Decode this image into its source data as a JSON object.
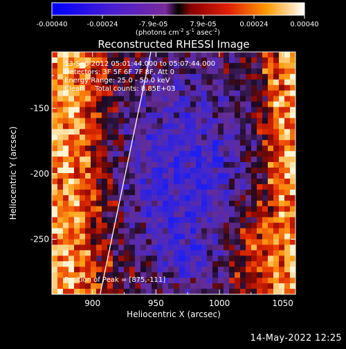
{
  "chart_data": {
    "type": "heatmap",
    "title": "Reconstructed RHESSI Image",
    "xlabel": "Heliocentric X (arcsec)",
    "ylabel": "Heliocentric Y (arcsec)",
    "xlim": [
      868,
      1060
    ],
    "ylim": [
      -292,
      -107
    ],
    "xticks": [
      900,
      950,
      1000,
      1050
    ],
    "yticks": [
      -150,
      -200,
      -250
    ],
    "colorbar": {
      "range": [
        -0.0004,
        0.0004
      ],
      "ticks": [
        "-0.00040",
        "-0.00024",
        "-7.9e-05",
        "7.9e-05",
        "0.00024",
        "0.00040"
      ],
      "units_text": "(photons cm",
      "units_sup1": "-2",
      "units_mid1": " s",
      "units_sup2": "-1",
      "units_mid2": " asec",
      "units_sup3": "-2",
      "units_end": ")"
    },
    "annotations": [
      "13-Sep-2012 05:01:44.000 to 05:07:44.000",
      "Detectors: 3F 5F 6F 7F 8F, Att 0",
      "Energy Range: 25.0 - 50.0 keV",
      "Clean     Total counts: 8.85E+03"
    ],
    "peak_text": "Position of Peak = [875,-111]",
    "limb_line": {
      "x": [
        906,
        946
      ],
      "y": [
        -292,
        -107
      ]
    }
  },
  "footer": {
    "timestamp": "14-May-2022 12:25"
  }
}
